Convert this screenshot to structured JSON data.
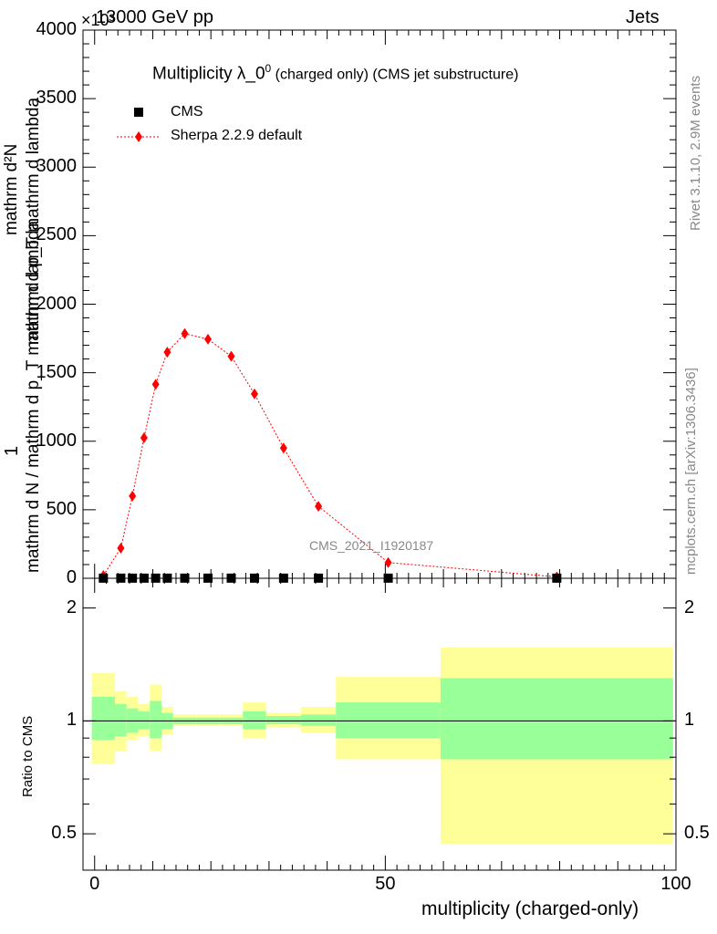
{
  "header": {
    "energy_label": "13000 GeV pp",
    "process_label": "Jets",
    "exponent_label": "×10³"
  },
  "side_labels": {
    "rivet": "Rivet 3.1.10,  2.9M events",
    "mcplots": "mcplots.cern.ch [arXiv:1306.3436]"
  },
  "watermark": "CMS_2021_I1920187",
  "legend": {
    "title_main": "Multiplicity λ_0",
    "title_sup": "0",
    "title_rest": " (charged only) (CMS jet substructure)",
    "entries": [
      {
        "label": "CMS",
        "color": "#000000",
        "marker": "square"
      },
      {
        "label": "Sherpa 2.2.9 default",
        "color": "#ff0000",
        "marker": "diamond"
      }
    ]
  },
  "y_axis_main": {
    "frac_numerator": "1",
    "frac_denominator_line1": "mathrm d N / mathrm d p_T mathrm d lambda",
    "frac_denominator_line2": "mathrm d²N",
    "frac_denominator_line3": "mathrm d p_T mathrm d lambda",
    "ticks": [
      "0",
      "500",
      "1000",
      "1500",
      "2000",
      "2500",
      "3000",
      "3500",
      "4000"
    ]
  },
  "y_axis_ratio": {
    "label": "Ratio to CMS",
    "ticks": [
      "0.5",
      "1",
      "2"
    ]
  },
  "x_axis": {
    "label": "multiplicity (charged-only)",
    "ticks": [
      "0",
      "50",
      "100"
    ]
  },
  "colors": {
    "mc_line": "#ff0000",
    "data": "#000000",
    "band_inner": "#99ff99",
    "band_outer": "#ffff99"
  },
  "chart_data": [
    {
      "type": "line",
      "title": "Multiplicity λ_0^0 (charged only) (CMS jet substructure)",
      "xlabel": "multiplicity (charged-only)",
      "xlim": [
        -2,
        100
      ],
      "ylim": [
        0,
        4000
      ],
      "y_multiplier": "×10³",
      "series": [
        {
          "name": "CMS",
          "x": [
            1.5,
            4.5,
            6.5,
            8.5,
            10.5,
            12.5,
            15.5,
            19.5,
            23.5,
            27.5,
            32.5,
            38.5,
            50.5,
            79.5
          ],
          "y": [
            1,
            1,
            1,
            1,
            1,
            1,
            1,
            1,
            1,
            1,
            1,
            1,
            1,
            1
          ]
        },
        {
          "name": "Sherpa 2.2.9 default",
          "x": [
            1.5,
            4.5,
            6.5,
            8.5,
            10.5,
            12.5,
            15.5,
            19.5,
            23.5,
            27.5,
            32.5,
            38.5,
            50.5,
            79.5
          ],
          "y": [
            20,
            220,
            600,
            1025,
            1415,
            1650,
            1785,
            1745,
            1620,
            1345,
            950,
            525,
            115,
            10
          ]
        }
      ]
    },
    {
      "type": "area",
      "ylabel": "Ratio to CMS",
      "ylim": [
        0.4,
        2.4
      ],
      "y_scale": "log",
      "bins": [
        {
          "x0": -0.5,
          "x1": 3.5,
          "inner": [
            0.89,
            1.16
          ],
          "outer": [
            0.77,
            1.34
          ]
        },
        {
          "x0": 3.5,
          "x1": 5.5,
          "inner": [
            0.91,
            1.11
          ],
          "outer": [
            0.83,
            1.2
          ]
        },
        {
          "x0": 5.5,
          "x1": 7.5,
          "inner": [
            0.93,
            1.08
          ],
          "outer": [
            0.89,
            1.16
          ]
        },
        {
          "x0": 7.5,
          "x1": 9.5,
          "inner": [
            0.95,
            1.06
          ],
          "outer": [
            0.91,
            1.11
          ]
        },
        {
          "x0": 9.5,
          "x1": 11.5,
          "inner": [
            0.9,
            1.13
          ],
          "outer": [
            0.83,
            1.25
          ]
        },
        {
          "x0": 11.5,
          "x1": 13.5,
          "inner": [
            0.95,
            1.05
          ],
          "outer": [
            0.92,
            1.09
          ]
        },
        {
          "x0": 13.5,
          "x1": 17.5,
          "inner": [
            0.98,
            1.02
          ],
          "outer": [
            0.97,
            1.04
          ]
        },
        {
          "x0": 17.5,
          "x1": 21.5,
          "inner": [
            0.98,
            1.02
          ],
          "outer": [
            0.97,
            1.04
          ]
        },
        {
          "x0": 21.5,
          "x1": 25.5,
          "inner": [
            0.98,
            1.02
          ],
          "outer": [
            0.97,
            1.04
          ]
        },
        {
          "x0": 25.5,
          "x1": 29.5,
          "inner": [
            0.95,
            1.06
          ],
          "outer": [
            0.9,
            1.12
          ]
        },
        {
          "x0": 29.5,
          "x1": 35.5,
          "inner": [
            0.98,
            1.03
          ],
          "outer": [
            0.96,
            1.05
          ]
        },
        {
          "x0": 35.5,
          "x1": 41.5,
          "inner": [
            0.97,
            1.04
          ],
          "outer": [
            0.93,
            1.09
          ]
        },
        {
          "x0": 41.5,
          "x1": 59.5,
          "inner": [
            0.9,
            1.12
          ],
          "outer": [
            0.79,
            1.31
          ]
        },
        {
          "x0": 59.5,
          "x1": 99.5,
          "inner": [
            0.79,
            1.3
          ],
          "outer": [
            0.47,
            1.57
          ]
        }
      ],
      "reference_line": 1
    }
  ]
}
